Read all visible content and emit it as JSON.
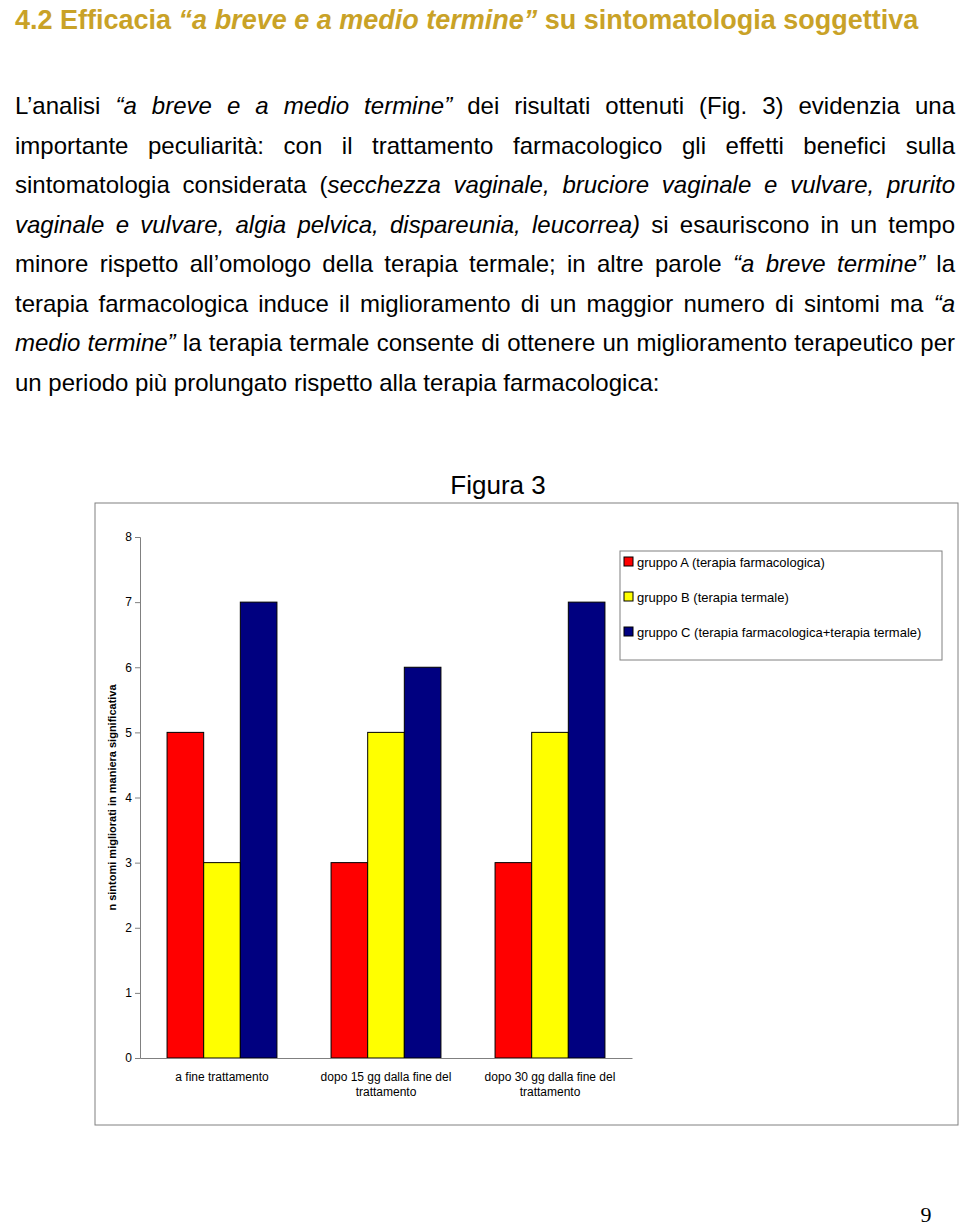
{
  "heading": [
    {
      "text": "4.2 Efficacia ",
      "italic": false
    },
    {
      "text": "“a breve e a medio termine”",
      "italic": true
    },
    {
      "text": " su sintomatologia soggettiva",
      "italic": false
    }
  ],
  "paragraph": [
    {
      "text": "L’analisi ",
      "italic": false
    },
    {
      "text": "“a breve e a medio termine”",
      "italic": true
    },
    {
      "text": " dei risultati ottenuti (Fig. 3) evidenzia una importante peculiarità: con il trattamento farmacologico gli effetti benefici sulla sintomatologia considerata (",
      "italic": false
    },
    {
      "text": "secchezza vaginale, bruciore vaginale e vulvare, prurito vaginale e vulvare, algia pelvica, dispareunia, leucorrea)",
      "italic": true
    },
    {
      "text": " si esauriscono in un tempo minore rispetto all’omologo della terapia termale; in altre parole ",
      "italic": false
    },
    {
      "text": "“a breve termine”",
      "italic": true
    },
    {
      "text": " la terapia farmacologica induce il miglioramento di un maggior numero di sintomi ma ",
      "italic": false
    },
    {
      "text": "“a medio termine”",
      "italic": true
    },
    {
      "text": " la terapia termale consente di ottenere un miglioramento terapeutico per un periodo più prolungato rispetto alla terapia farmacologica:",
      "italic": false
    }
  ],
  "figure_title": "Figura 3",
  "chart_data": {
    "type": "bar",
    "ylabel": "n sintomi migliorati in maniera significativa",
    "categories": [
      "a fine trattamento",
      "dopo 15 gg dalla fine del trattamento",
      "dopo 30 gg dalla fine del trattamento"
    ],
    "series": [
      {
        "name": "gruppo A (terapia farmacologica)",
        "color": "#ff0000",
        "values": [
          5,
          3,
          3
        ]
      },
      {
        "name": "gruppo B (terapia termale)",
        "color": "#ffff00",
        "values": [
          3,
          5,
          5
        ]
      },
      {
        "name": "gruppo C (terapia farmacologica+terapia termale)",
        "color": "#000080",
        "values": [
          7,
          6,
          7
        ]
      }
    ],
    "ylim": [
      0,
      8
    ],
    "yticks": [
      0,
      1,
      2,
      3,
      4,
      5,
      6,
      7,
      8
    ],
    "grid": false,
    "legend": "upper right"
  },
  "page_number": 9
}
